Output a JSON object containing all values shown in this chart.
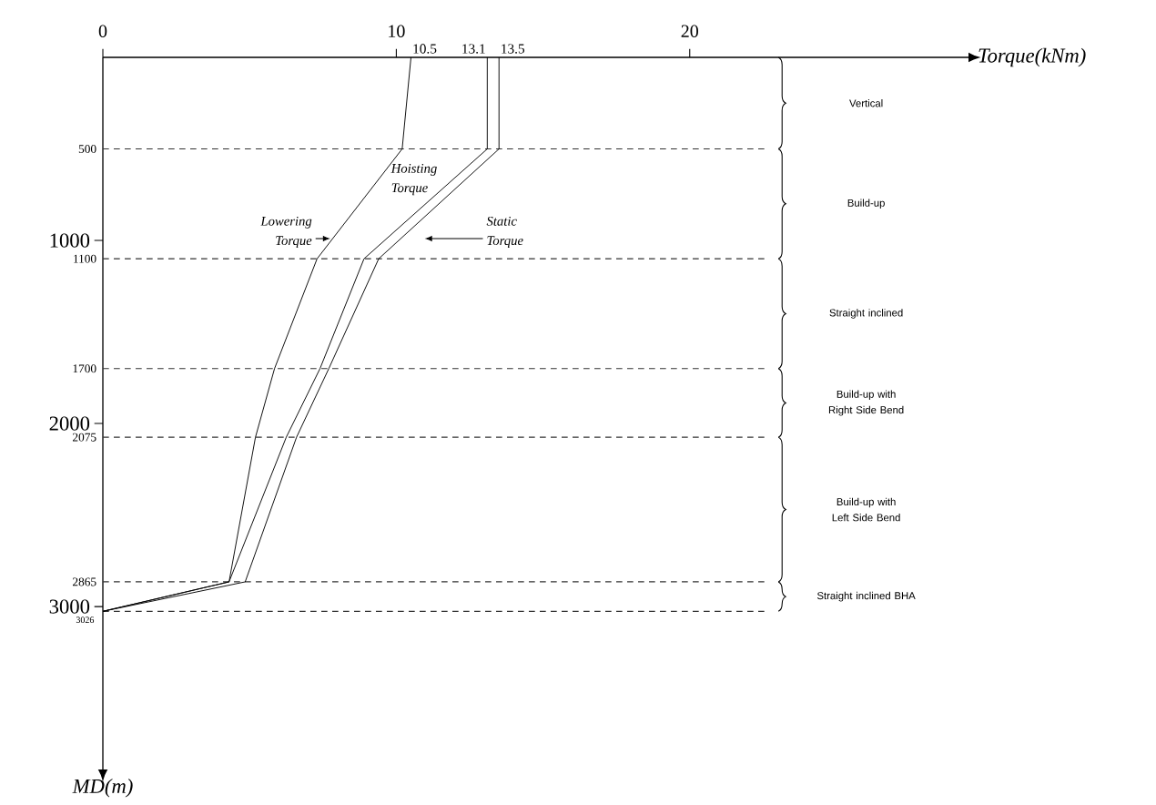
{
  "chart_data": {
    "type": "line",
    "xlabel": "Torque(kNm)",
    "ylabel": "MD(m)",
    "xlim": [
      0,
      29.5
    ],
    "ylim": [
      3890,
      0
    ],
    "xticks": [
      0,
      10,
      20
    ],
    "yticks": [
      1000,
      2000,
      3000
    ],
    "series": [
      {
        "name": "Lowering Torque",
        "color": "#000000",
        "x": [
          10.5,
          10.2,
          7.3,
          5.85,
          5.2,
          4.3,
          0
        ],
        "values": [
          0,
          500,
          1100,
          1700,
          2075,
          2865,
          3026
        ]
      },
      {
        "name": "Hoisting Torque",
        "color": "#000000",
        "x": [
          13.1,
          13.1,
          8.9,
          7.4,
          6.25,
          4.3,
          0
        ],
        "values": [
          0,
          500,
          1100,
          1700,
          2075,
          2865,
          3026
        ]
      },
      {
        "name": "Static Torque",
        "color": "#000000",
        "x": [
          13.5,
          13.5,
          9.4,
          7.7,
          6.6,
          4.85,
          0
        ],
        "values": [
          0,
          500,
          1100,
          1700,
          2075,
          2865,
          3026
        ]
      }
    ],
    "annotations": [
      {
        "text": "10.5",
        "x": 10.5,
        "y": 0
      },
      {
        "text": "13.1",
        "x": 13.1,
        "y": 0
      },
      {
        "text": "13.5",
        "x": 13.5,
        "y": 0
      },
      "Vertical",
      "Build-up",
      "Straight inclined",
      "Build-up with Right Side Bend",
      "Build-up with Left Side Bend",
      "Straight inclined BHA"
    ],
    "ref_lines": [
      {
        "axis": "y",
        "value": 500,
        "label": "500",
        "color": "#333333",
        "line_style": "dashed"
      },
      {
        "axis": "y",
        "value": 1100,
        "label": "1100",
        "color": "#333333",
        "line_style": "dashed"
      },
      {
        "axis": "y",
        "value": 1700,
        "label": "1700",
        "color": "#333333",
        "line_style": "dashed"
      },
      {
        "axis": "y",
        "value": 2075,
        "label": "2075",
        "color": "#333333",
        "line_style": "dashed"
      },
      {
        "axis": "y",
        "value": 2865,
        "label": "2865",
        "color": "#333333",
        "line_style": "dashed"
      },
      {
        "axis": "y",
        "value": 3026,
        "label": "3026",
        "color": "#333333",
        "line_style": "dashed"
      }
    ]
  }
}
